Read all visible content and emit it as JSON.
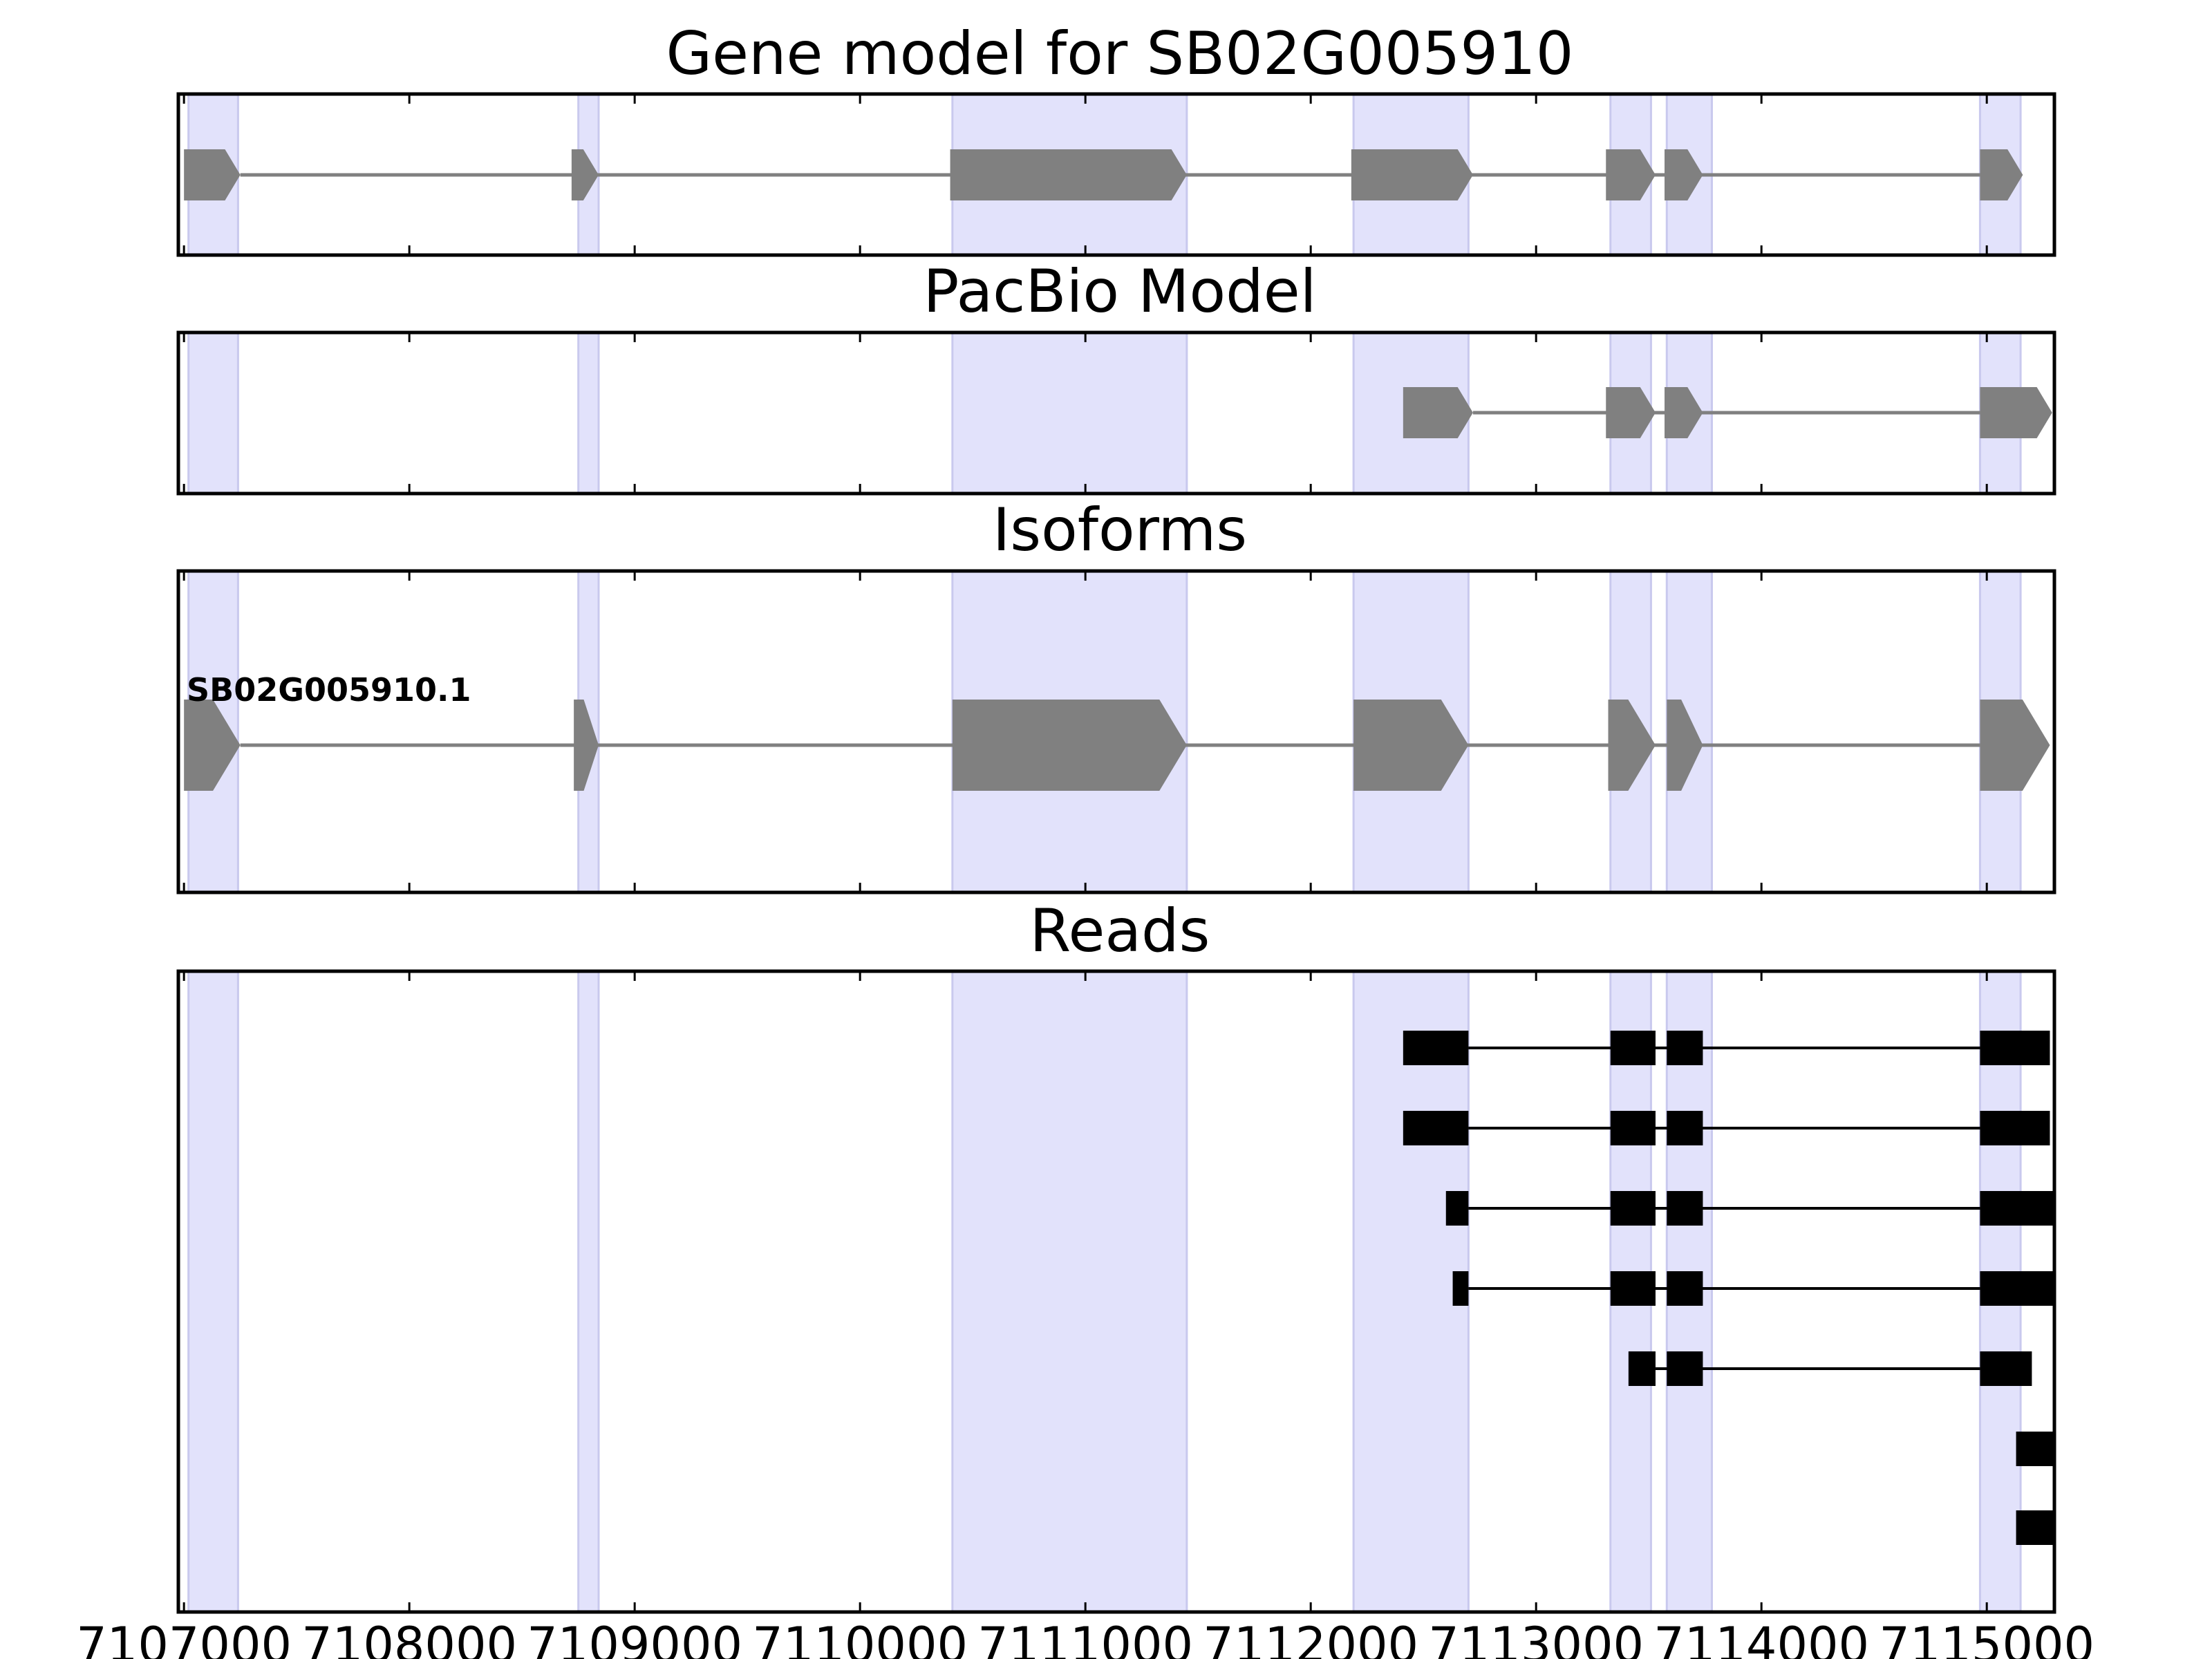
{
  "colors": {
    "shade": "#e2e2fb",
    "shade_edge": "#c9c9ee",
    "model": "#808080",
    "read": "#000000",
    "axis": "#000000",
    "background": "#ffffff"
  },
  "chart_data": {
    "type": "gene-track",
    "xlim": [
      7106975,
      7115300
    ],
    "x_ticks": [
      7107000,
      7108000,
      7109000,
      7110000,
      7111000,
      7112000,
      7113000,
      7114000,
      7115000
    ],
    "x_tick_labels": [
      "7107000",
      "7108000",
      "7109000",
      "7110000",
      "7111000",
      "7112000",
      "7113000",
      "7114000",
      "7115000"
    ],
    "shaded_regions": [
      [
        7107020,
        7107240
      ],
      [
        7108750,
        7108840
      ],
      [
        7110410,
        7111450
      ],
      [
        7112190,
        7112700
      ],
      [
        7113330,
        7113510
      ],
      [
        7113580,
        7113780
      ],
      [
        7114970,
        7115150
      ]
    ],
    "panels": [
      {
        "title": "Gene model for SB02G005910",
        "tracks": [
          {
            "label": "",
            "exons": [
              [
                7107000,
                7107250
              ],
              [
                7108720,
                7108840
              ],
              [
                7110400,
                7111450
              ],
              [
                7112180,
                7112720
              ],
              [
                7113310,
                7113530
              ],
              [
                7113570,
                7113740
              ],
              [
                7114970,
                7115160
              ]
            ]
          }
        ]
      },
      {
        "title": "PacBio Model",
        "tracks": [
          {
            "label": "",
            "exons": [
              [
                7112410,
                7112720
              ],
              [
                7113310,
                7113530
              ],
              [
                7113570,
                7113740
              ],
              [
                7114970,
                7115290
              ]
            ]
          }
        ]
      },
      {
        "title": "Isoforms",
        "tracks": [
          {
            "label": "SB02G005910.1",
            "exons": [
              [
                7107000,
                7107250
              ],
              [
                7108730,
                7108840
              ],
              [
                7110410,
                7111450
              ],
              [
                7112190,
                7112700
              ],
              [
                7113320,
                7113530
              ],
              [
                7113580,
                7113740
              ],
              [
                7114970,
                7115280
              ]
            ]
          }
        ]
      },
      {
        "title": "Reads",
        "tracks": [
          {
            "label": "",
            "exons": [
              [
                7112410,
                7112700
              ],
              [
                7113330,
                7113530
              ],
              [
                7113580,
                7113740
              ],
              [
                7114970,
                7115280
              ]
            ]
          },
          {
            "label": "",
            "exons": [
              [
                7112410,
                7112700
              ],
              [
                7113330,
                7113530
              ],
              [
                7113580,
                7113740
              ],
              [
                7114970,
                7115280
              ]
            ]
          },
          {
            "label": "",
            "exons": [
              [
                7112600,
                7112700
              ],
              [
                7113330,
                7113530
              ],
              [
                7113580,
                7113740
              ],
              [
                7114970,
                7115300
              ]
            ]
          },
          {
            "label": "",
            "exons": [
              [
                7112630,
                7112700
              ],
              [
                7113330,
                7113530
              ],
              [
                7113580,
                7113740
              ],
              [
                7114970,
                7115300
              ]
            ]
          },
          {
            "label": "",
            "exons": [
              [
                7113410,
                7113530
              ],
              [
                7113580,
                7113740
              ],
              [
                7114970,
                7115200
              ]
            ]
          },
          {
            "label": "",
            "exons": [
              [
                7115130,
                7115300
              ]
            ]
          },
          {
            "label": "",
            "exons": [
              [
                7115130,
                7115300
              ]
            ]
          }
        ]
      }
    ]
  }
}
